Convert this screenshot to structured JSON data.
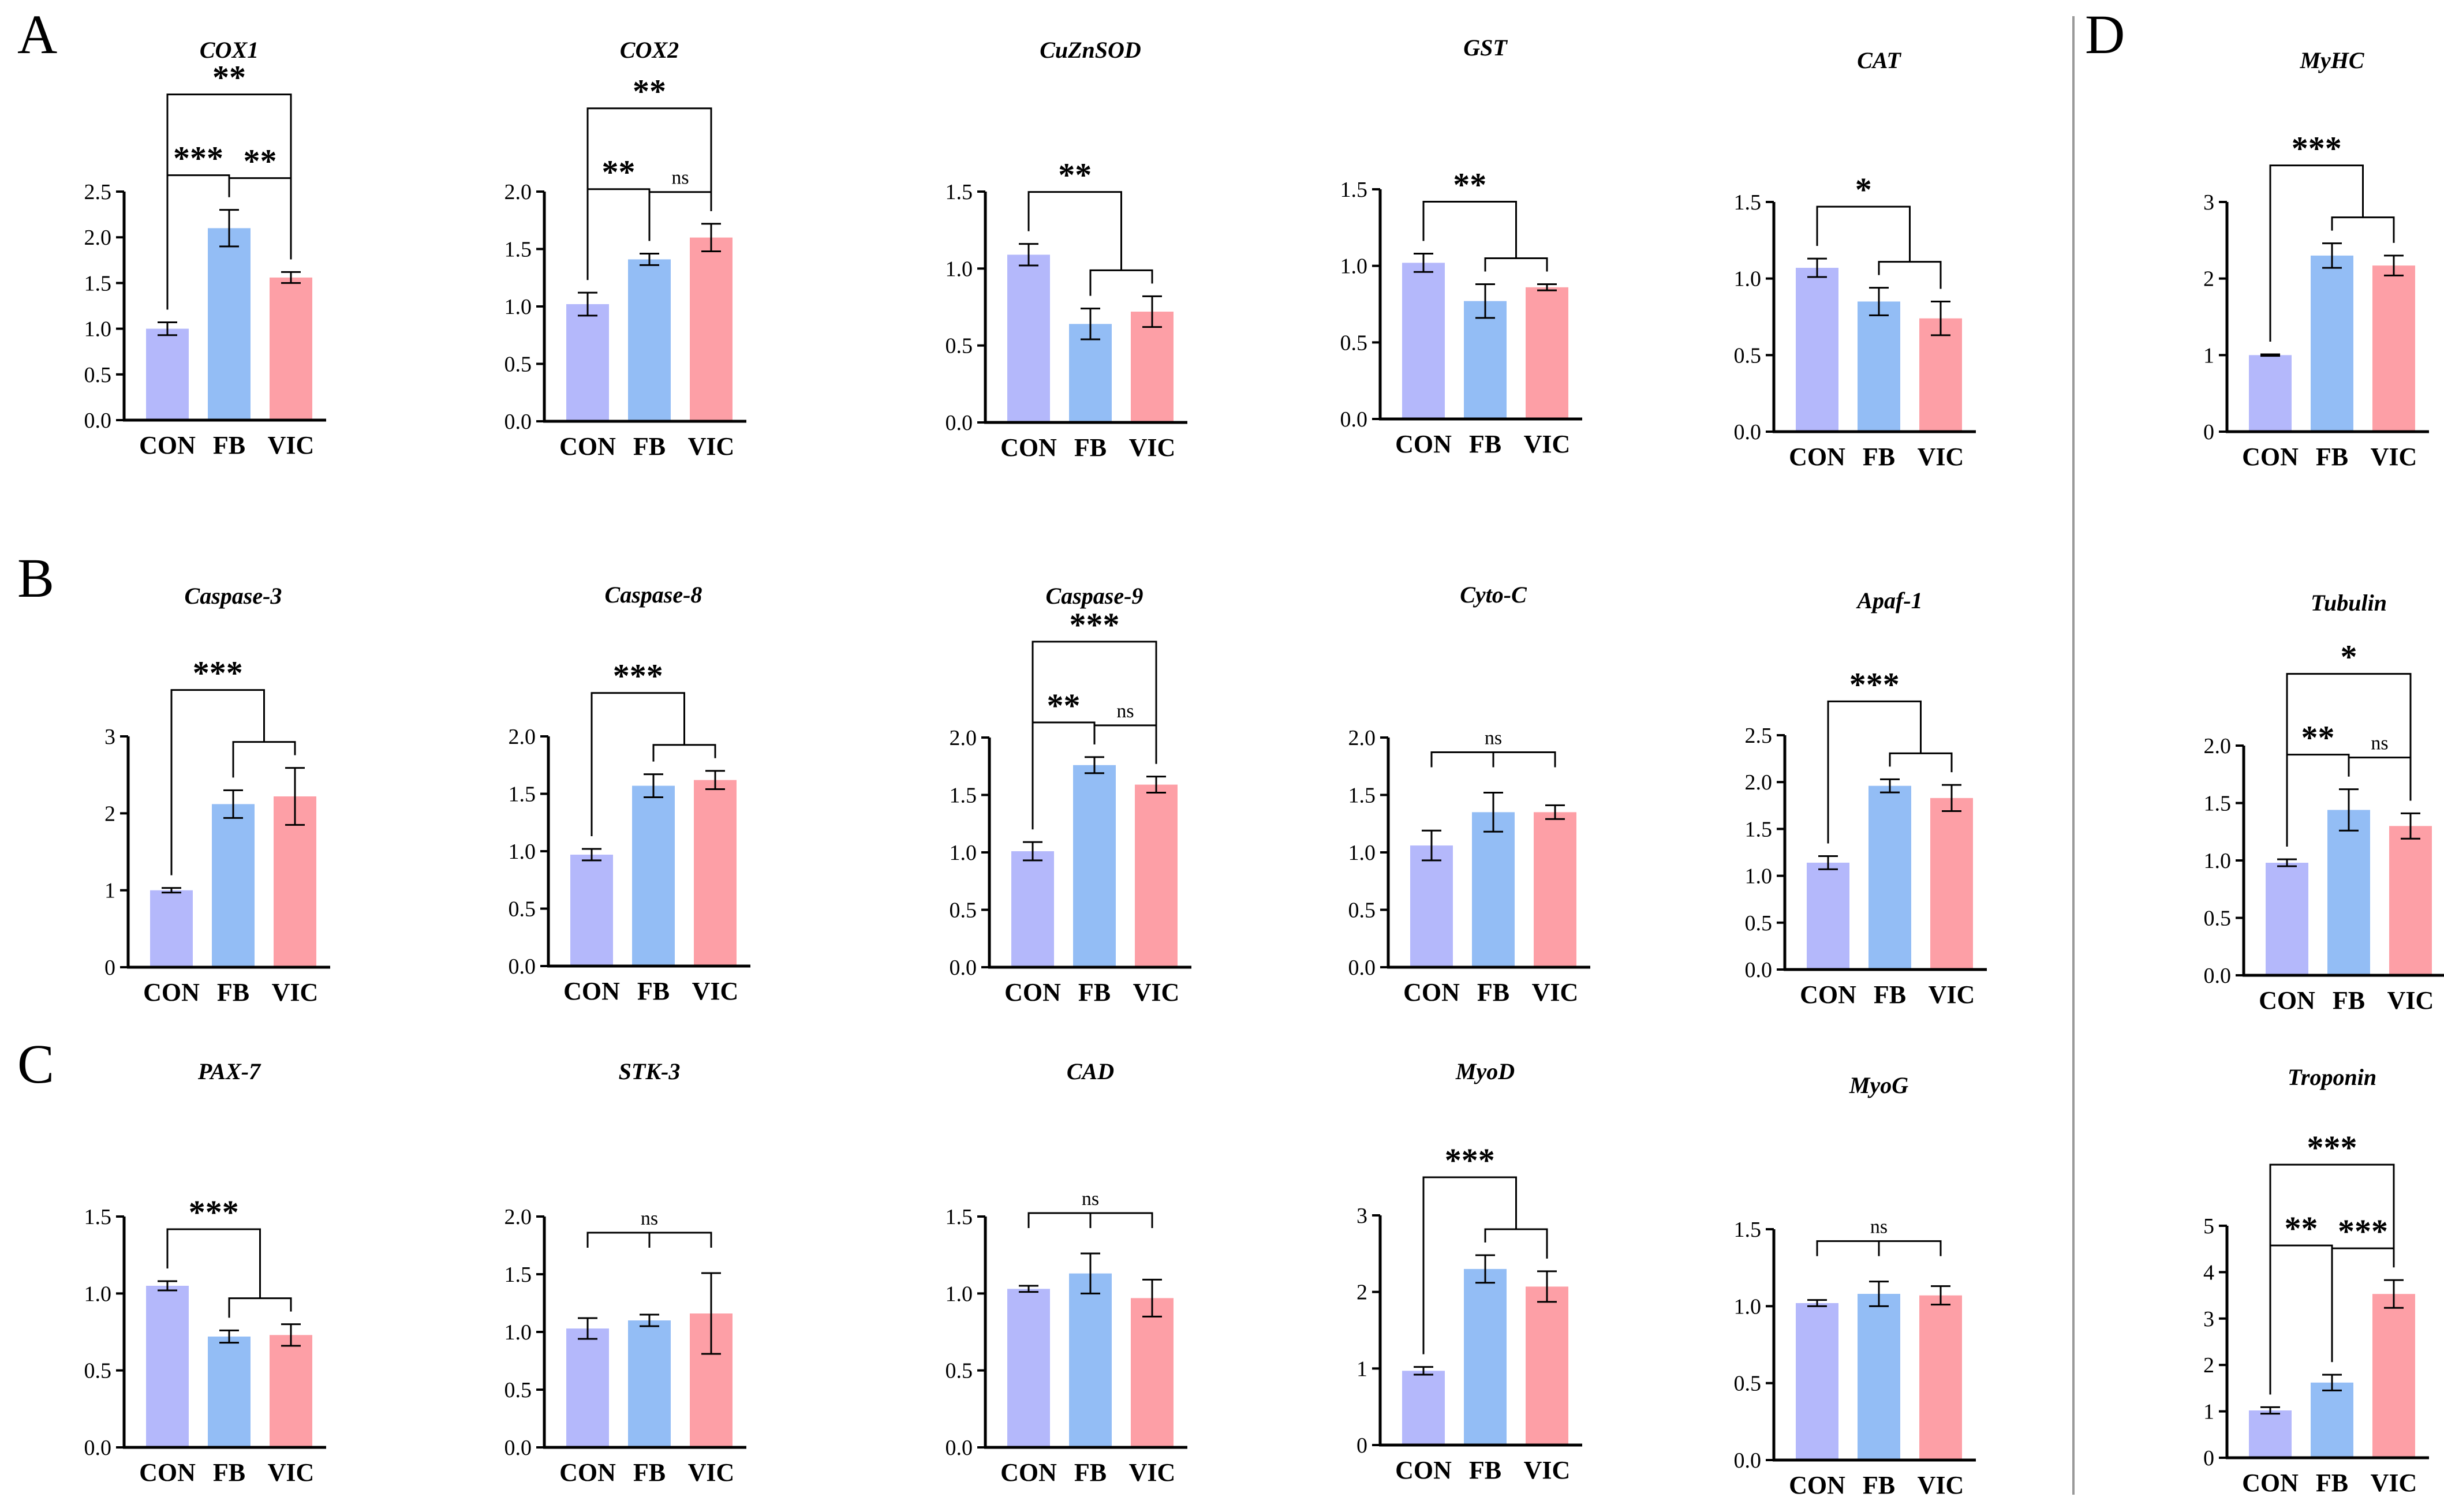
{
  "figure": {
    "panel_labels": [
      "A",
      "B",
      "C",
      "D"
    ],
    "colors": {
      "CON": "#b4b8fb",
      "FB": "#93bdf5",
      "VIC": "#fd9fa6",
      "axis": "#000000",
      "divider": "#999999"
    }
  },
  "chart_data": [
    {
      "type": "bar",
      "panel": "A",
      "title": "COX1",
      "categories": [
        "CON",
        "FB",
        "VIC"
      ],
      "values": [
        1.0,
        2.1,
        1.56
      ],
      "errors": [
        0.07,
        0.2,
        0.06
      ],
      "ylim": [
        0,
        2.5
      ],
      "yticks": [
        "0.0",
        "0.5",
        "1.0",
        "1.5",
        "2.0",
        "2.5"
      ],
      "significance": [
        {
          "from": 0,
          "to": 1,
          "label": "***",
          "style": "pair"
        },
        {
          "from": 1,
          "to": 2,
          "label": "**",
          "style": "pair"
        },
        {
          "from": 0,
          "to": 2,
          "label": "**",
          "style": "pair"
        }
      ]
    },
    {
      "type": "bar",
      "panel": "A",
      "title": "COX2",
      "categories": [
        "CON",
        "FB",
        "VIC"
      ],
      "values": [
        1.02,
        1.41,
        1.6
      ],
      "errors": [
        0.1,
        0.05,
        0.12
      ],
      "ylim": [
        0,
        2.0
      ],
      "yticks": [
        "0.0",
        "0.5",
        "1.0",
        "1.5",
        "2.0"
      ],
      "significance": [
        {
          "from": 0,
          "to": 1,
          "label": "**",
          "style": "pair"
        },
        {
          "from": 1,
          "to": 2,
          "label": "ns",
          "style": "pair"
        },
        {
          "from": 0,
          "to": 2,
          "label": "**",
          "style": "pair"
        }
      ]
    },
    {
      "type": "bar",
      "panel": "A",
      "title": "CuZnSOD",
      "categories": [
        "CON",
        "FB",
        "VIC"
      ],
      "values": [
        1.09,
        0.64,
        0.72
      ],
      "errors": [
        0.07,
        0.1,
        0.1
      ],
      "ylim": [
        0,
        1.5
      ],
      "yticks": [
        "0.0",
        "0.5",
        "1.0",
        "1.5"
      ],
      "significance": [
        {
          "from": 0,
          "to": 2,
          "label": "**",
          "style": "group"
        }
      ]
    },
    {
      "type": "bar",
      "panel": "A",
      "title": "GST",
      "categories": [
        "CON",
        "FB",
        "VIC"
      ],
      "values": [
        1.02,
        0.77,
        0.86
      ],
      "errors": [
        0.06,
        0.11,
        0.02
      ],
      "ylim": [
        0,
        1.5
      ],
      "yticks": [
        "0.0",
        "0.5",
        "1.0",
        "1.5"
      ],
      "significance": [
        {
          "from": 0,
          "to": 2,
          "label": "**",
          "style": "group"
        }
      ]
    },
    {
      "type": "bar",
      "panel": "A",
      "title": "CAT",
      "categories": [
        "CON",
        "FB",
        "VIC"
      ],
      "values": [
        1.07,
        0.85,
        0.74
      ],
      "errors": [
        0.06,
        0.09,
        0.11
      ],
      "ylim": [
        0,
        1.5
      ],
      "yticks": [
        "0.0",
        "0.5",
        "1.0",
        "1.5"
      ],
      "significance": [
        {
          "from": 0,
          "to": 2,
          "label": "*",
          "style": "group"
        }
      ]
    },
    {
      "type": "bar",
      "panel": "D",
      "title": "MyHC",
      "categories": [
        "CON",
        "FB",
        "VIC"
      ],
      "values": [
        1.0,
        2.3,
        2.17
      ],
      "errors": [
        0.01,
        0.16,
        0.13
      ],
      "ylim": [
        0,
        3
      ],
      "yticks": [
        "0",
        "1",
        "2",
        "3"
      ],
      "significance": [
        {
          "from": 0,
          "to": 2,
          "label": "***",
          "style": "group"
        }
      ]
    },
    {
      "type": "bar",
      "panel": "B",
      "title": "Caspase-3",
      "categories": [
        "CON",
        "FB",
        "VIC"
      ],
      "values": [
        1.0,
        2.12,
        2.22
      ],
      "errors": [
        0.03,
        0.18,
        0.37
      ],
      "ylim": [
        0,
        3
      ],
      "yticks": [
        "0",
        "1",
        "2",
        "3"
      ],
      "significance": [
        {
          "from": 0,
          "to": 2,
          "label": "***",
          "style": "group"
        }
      ]
    },
    {
      "type": "bar",
      "panel": "B",
      "title": "Caspase-8",
      "categories": [
        "CON",
        "FB",
        "VIC"
      ],
      "values": [
        0.97,
        1.57,
        1.62
      ],
      "errors": [
        0.05,
        0.1,
        0.08
      ],
      "ylim": [
        0,
        2.0
      ],
      "yticks": [
        "0.0",
        "0.5",
        "1.0",
        "1.5",
        "2.0"
      ],
      "significance": [
        {
          "from": 0,
          "to": 2,
          "label": "***",
          "style": "group"
        }
      ]
    },
    {
      "type": "bar",
      "panel": "B",
      "title": "Caspase-9",
      "categories": [
        "CON",
        "FB",
        "VIC"
      ],
      "values": [
        1.01,
        1.76,
        1.59
      ],
      "errors": [
        0.08,
        0.07,
        0.07
      ],
      "ylim": [
        0,
        2.0
      ],
      "yticks": [
        "0.0",
        "0.5",
        "1.0",
        "1.5",
        "2.0"
      ],
      "significance": [
        {
          "from": 0,
          "to": 1,
          "label": "**",
          "style": "pair"
        },
        {
          "from": 1,
          "to": 2,
          "label": "ns",
          "style": "pair"
        },
        {
          "from": 0,
          "to": 2,
          "label": "***",
          "style": "pair"
        }
      ]
    },
    {
      "type": "bar",
      "panel": "B",
      "title": "Cyto-C",
      "categories": [
        "CON",
        "FB",
        "VIC"
      ],
      "values": [
        1.06,
        1.35,
        1.35
      ],
      "errors": [
        0.13,
        0.17,
        0.06
      ],
      "ylim": [
        0,
        2.0
      ],
      "yticks": [
        "0.0",
        "0.5",
        "1.0",
        "1.5",
        "2.0"
      ],
      "significance": [
        {
          "from": 0,
          "to": 2,
          "label": "ns",
          "style": "flat"
        }
      ]
    },
    {
      "type": "bar",
      "panel": "B",
      "title": "Apaf-1",
      "categories": [
        "CON",
        "FB",
        "VIC"
      ],
      "values": [
        1.14,
        1.96,
        1.83
      ],
      "errors": [
        0.07,
        0.07,
        0.14
      ],
      "ylim": [
        0,
        2.5
      ],
      "yticks": [
        "0.0",
        "0.5",
        "1.0",
        "1.5",
        "2.0",
        "2.5"
      ],
      "significance": [
        {
          "from": 0,
          "to": 2,
          "label": "***",
          "style": "group"
        }
      ]
    },
    {
      "type": "bar",
      "panel": "D",
      "title": "Tubulin",
      "categories": [
        "CON",
        "FB",
        "VIC"
      ],
      "values": [
        0.98,
        1.44,
        1.3
      ],
      "errors": [
        0.03,
        0.18,
        0.11
      ],
      "ylim": [
        0,
        2.0
      ],
      "yticks": [
        "0.0",
        "0.5",
        "1.0",
        "1.5",
        "2.0"
      ],
      "significance": [
        {
          "from": 0,
          "to": 1,
          "label": "**",
          "style": "pair"
        },
        {
          "from": 1,
          "to": 2,
          "label": "ns",
          "style": "pair"
        },
        {
          "from": 0,
          "to": 2,
          "label": "*",
          "style": "pair"
        }
      ]
    },
    {
      "type": "bar",
      "panel": "C",
      "title": "PAX-7",
      "categories": [
        "CON",
        "FB",
        "VIC"
      ],
      "values": [
        1.05,
        0.72,
        0.73
      ],
      "errors": [
        0.03,
        0.04,
        0.07
      ],
      "ylim": [
        0,
        1.5
      ],
      "yticks": [
        "0.0",
        "0.5",
        "1.0",
        "1.5"
      ],
      "significance": [
        {
          "from": 0,
          "to": 2,
          "label": "***",
          "style": "group"
        }
      ]
    },
    {
      "type": "bar",
      "panel": "C",
      "title": "STK-3",
      "categories": [
        "CON",
        "FB",
        "VIC"
      ],
      "values": [
        1.03,
        1.1,
        1.16
      ],
      "errors": [
        0.09,
        0.05,
        0.35
      ],
      "ylim": [
        0,
        2.0
      ],
      "yticks": [
        "0.0",
        "0.5",
        "1.0",
        "1.5",
        "2.0"
      ],
      "significance": [
        {
          "from": 0,
          "to": 2,
          "label": "ns",
          "style": "flat"
        }
      ]
    },
    {
      "type": "bar",
      "panel": "C",
      "title": "CAD",
      "categories": [
        "CON",
        "FB",
        "VIC"
      ],
      "values": [
        1.03,
        1.13,
        0.97
      ],
      "errors": [
        0.02,
        0.13,
        0.12
      ],
      "ylim": [
        0,
        1.5
      ],
      "yticks": [
        "0.0",
        "0.5",
        "1.0",
        "1.5"
      ],
      "significance": [
        {
          "from": 0,
          "to": 2,
          "label": "ns",
          "style": "flat"
        }
      ]
    },
    {
      "type": "bar",
      "panel": "C",
      "title": "MyoD",
      "categories": [
        "CON",
        "FB",
        "VIC"
      ],
      "values": [
        0.97,
        2.3,
        2.07
      ],
      "errors": [
        0.05,
        0.18,
        0.2
      ],
      "ylim": [
        0,
        3
      ],
      "yticks": [
        "0",
        "1",
        "2",
        "3"
      ],
      "significance": [
        {
          "from": 0,
          "to": 2,
          "label": "***",
          "style": "group"
        }
      ]
    },
    {
      "type": "bar",
      "panel": "C",
      "title": "MyoG",
      "categories": [
        "CON",
        "FB",
        "VIC"
      ],
      "values": [
        1.02,
        1.08,
        1.07
      ],
      "errors": [
        0.02,
        0.08,
        0.06
      ],
      "ylim": [
        0,
        1.5
      ],
      "yticks": [
        "0.0",
        "0.5",
        "1.0",
        "1.5"
      ],
      "significance": [
        {
          "from": 0,
          "to": 2,
          "label": "ns",
          "style": "flat"
        }
      ]
    },
    {
      "type": "bar",
      "panel": "D",
      "title": "Troponin",
      "categories": [
        "CON",
        "FB",
        "VIC"
      ],
      "values": [
        1.02,
        1.62,
        3.53
      ],
      "errors": [
        0.07,
        0.17,
        0.3
      ],
      "ylim": [
        0,
        5
      ],
      "yticks": [
        "0",
        "1",
        "2",
        "3",
        "4",
        "5"
      ],
      "significance": [
        {
          "from": 0,
          "to": 1,
          "label": "**",
          "style": "pair"
        },
        {
          "from": 1,
          "to": 2,
          "label": "***",
          "style": "pair"
        },
        {
          "from": 0,
          "to": 2,
          "label": "***",
          "style": "pair"
        }
      ]
    }
  ]
}
